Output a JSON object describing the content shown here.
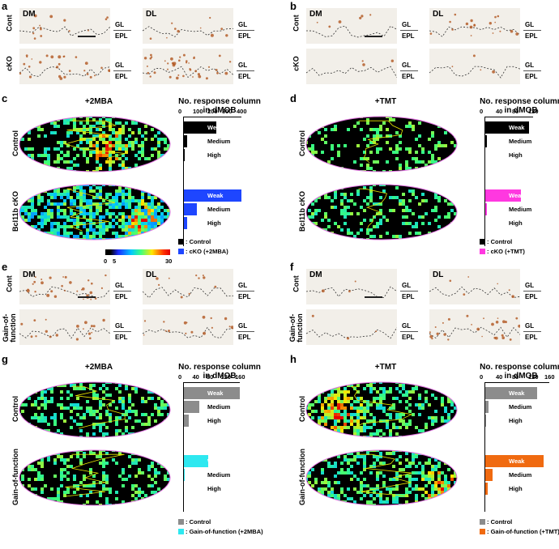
{
  "panels": {
    "a": {
      "label": "a",
      "cols": [
        "DM",
        "DL"
      ],
      "rows": [
        "Cont",
        "cKO"
      ],
      "layers": [
        "GL",
        "EPL"
      ]
    },
    "b": {
      "label": "b",
      "cols": [
        "DM",
        "DL"
      ],
      "rows": [
        "Cont",
        "cKO"
      ],
      "layers": [
        "GL",
        "EPL"
      ]
    },
    "e": {
      "label": "e",
      "cols": [
        "DM",
        "DL"
      ],
      "rows": [
        "Cont",
        "Gain-of-\nfunction"
      ],
      "layers": [
        "GL",
        "EPL"
      ]
    },
    "f": {
      "label": "f",
      "cols": [
        "DM",
        "DL"
      ],
      "rows": [
        "Cont",
        "Gain-of-\nfunction"
      ],
      "layers": [
        "GL",
        "EPL"
      ]
    }
  },
  "colorbar": {
    "min": "0",
    "mid": "5",
    "max": "30"
  },
  "chart_data": [
    {
      "panel": "c",
      "type": "bar",
      "title": "+2MBA",
      "chart_title": "No. response column\nin dMOB",
      "rows": [
        "Control",
        "Bcl11b cKO"
      ],
      "categories": [
        "Weak",
        "Medium",
        "High"
      ],
      "ticks": [
        "0",
        "100",
        "200",
        "300",
        "400"
      ],
      "xlim": [
        0,
        400
      ],
      "series": [
        {
          "name": ": Control",
          "color": "#000000",
          "values": [
            230,
            25,
            10
          ]
        },
        {
          "name": ": cKO (+2MBA)",
          "color": "#1e46ff",
          "values": [
            400,
            95,
            30
          ]
        }
      ]
    },
    {
      "panel": "d",
      "type": "bar",
      "title": "+TMT",
      "chart_title": "No. response column\nin dMOB",
      "rows": [
        "Control",
        "Bcl11b cKO"
      ],
      "categories": [
        "Weak",
        "Medium",
        "High"
      ],
      "ticks": [
        "0",
        "40",
        "80",
        "120"
      ],
      "xlim": [
        0,
        120
      ],
      "series": [
        {
          "name": ": Control",
          "color": "#000000",
          "values": [
            110,
            5,
            2
          ]
        },
        {
          "name": ": cKO (+TMT)",
          "color": "#ff38e0",
          "values": [
            90,
            5,
            2
          ]
        }
      ]
    },
    {
      "panel": "g",
      "type": "bar",
      "title": "+2MBA",
      "chart_title": "No. response column\nin dMOB",
      "rows": [
        "Control",
        "Gain-of-function"
      ],
      "categories": [
        "Weak",
        "Medium",
        "High"
      ],
      "ticks": [
        "0",
        "40",
        "80",
        "120",
        "160"
      ],
      "xlim": [
        0,
        160
      ],
      "series": [
        {
          "name": ": Control",
          "color": "#8c8c8c",
          "values": [
            160,
            45,
            15
          ]
        },
        {
          "name": ": Gain-of-function (+2MBA)",
          "color": "#2ee8f0",
          "values": [
            70,
            5,
            2
          ]
        }
      ]
    },
    {
      "panel": "h",
      "type": "bar",
      "title": "+TMT",
      "chart_title": "No. response column\nin dMOB",
      "rows": [
        "Control",
        "Gain-of-function"
      ],
      "categories": [
        "Weak",
        "Medium",
        "High"
      ],
      "ticks": [
        "0",
        "40",
        "80",
        "120",
        "160"
      ],
      "xlim": [
        0,
        160
      ],
      "series": [
        {
          "name": ": Control",
          "color": "#8c8c8c",
          "values": [
            130,
            10,
            3
          ]
        },
        {
          "name": ": Gain-of-function (+TMT)",
          "color": "#f06a10",
          "values": [
            145,
            20,
            8
          ]
        }
      ]
    }
  ]
}
